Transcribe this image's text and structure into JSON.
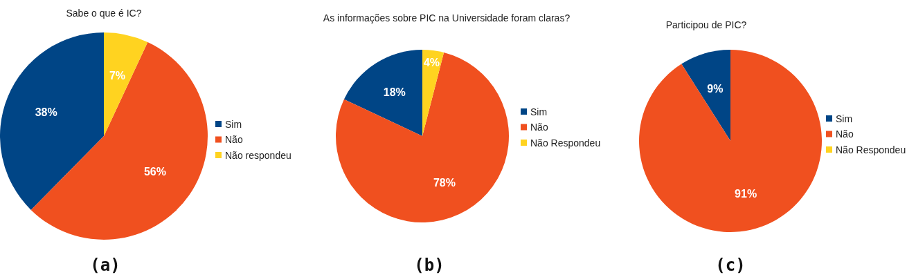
{
  "chart_data": [
    {
      "type": "pie",
      "title": "Sabe o que é IC?",
      "categories": [
        "Sim",
        "Não",
        "Não respondeu"
      ],
      "values": [
        38,
        56,
        7
      ],
      "colors": [
        "#004586",
        "#f0501f",
        "#ffd320"
      ],
      "value_labels": [
        "38%",
        "56%",
        "7%"
      ],
      "legend": "right",
      "annotations": [
        "(a)"
      ]
    },
    {
      "type": "pie",
      "title": "As informações sobre PIC na Universidade foram claras?",
      "categories": [
        "Sim",
        "Não",
        "Não Respondeu"
      ],
      "values": [
        18,
        78,
        4
      ],
      "colors": [
        "#004586",
        "#f0501f",
        "#ffd320"
      ],
      "value_labels": [
        "18%",
        "78%",
        "4%"
      ],
      "legend": "right",
      "annotations": [
        "(b)"
      ]
    },
    {
      "type": "pie",
      "title": "Participou de PIC?",
      "categories": [
        "Sim",
        "Não",
        "Não Respondeu"
      ],
      "values": [
        9,
        91,
        0
      ],
      "colors": [
        "#004586",
        "#f0501f",
        "#ffd320"
      ],
      "value_labels": [
        "9%",
        "91%",
        null
      ],
      "legend": "right",
      "annotations": [
        "(c)"
      ]
    }
  ]
}
